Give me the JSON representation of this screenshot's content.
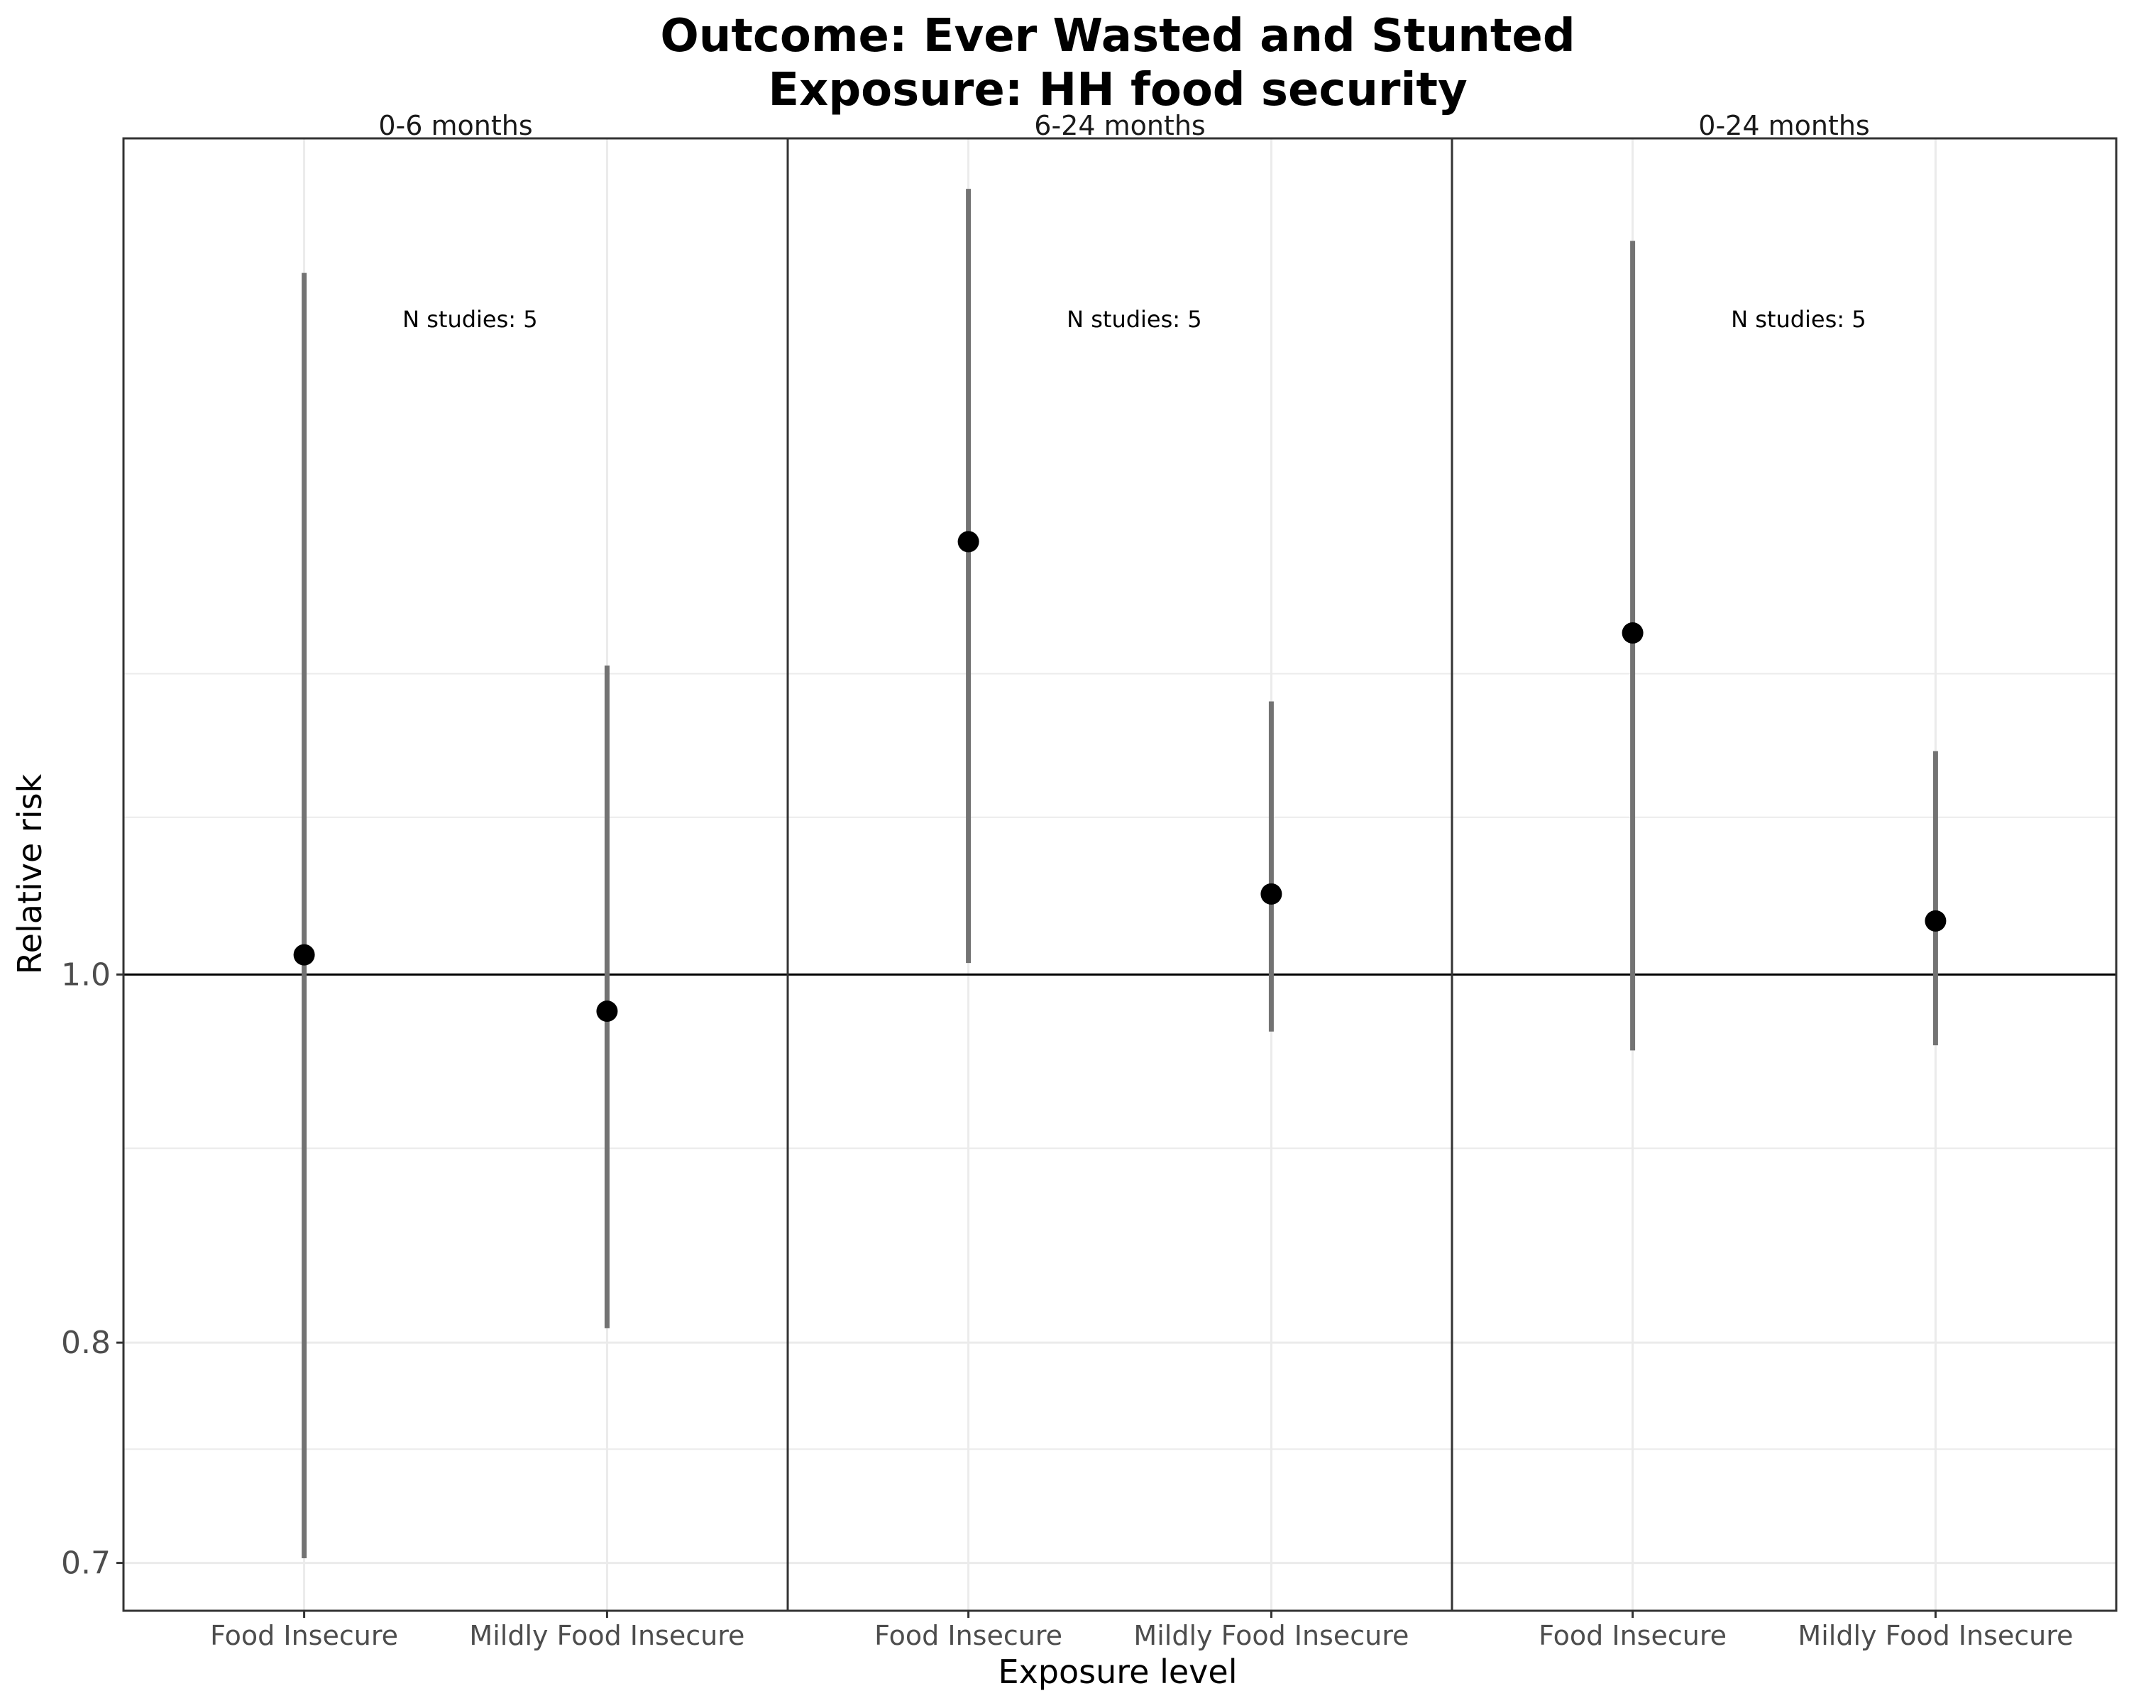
{
  "chart_data": {
    "type": "scatter",
    "title_lines": [
      "Outcome: Ever Wasted and Stunted",
      "Exposure: HH food security"
    ],
    "xlabel": "Exposure level",
    "ylabel": "Relative risk",
    "y_scale": "log",
    "ylim": [
      0.68,
      1.66
    ],
    "y_ticks": [
      0.7,
      0.8,
      1.0
    ],
    "y_tick_labels": [
      "0.7",
      "0.8",
      "1.0"
    ],
    "y_minor_gridlines": [
      0.75,
      0.9,
      1.1,
      1.2
    ],
    "reference_line": 1.0,
    "categories": [
      "Food Insecure",
      "Mildly Food Insecure"
    ],
    "panels": [
      {
        "label": "0-6 months",
        "annotation": "N studies: 5",
        "points": [
          {
            "category": "Food Insecure",
            "estimate": 1.012,
            "lower": 0.702,
            "upper": 1.53
          },
          {
            "category": "Mildly Food Insecure",
            "estimate": 0.978,
            "lower": 0.807,
            "upper": 1.206
          }
        ]
      },
      {
        "label": "6-24 months",
        "annotation": "N studies: 5",
        "points": [
          {
            "category": "Food Insecure",
            "estimate": 1.3,
            "lower": 1.007,
            "upper": 1.61
          },
          {
            "category": "Mildly Food Insecure",
            "estimate": 1.05,
            "lower": 0.966,
            "upper": 1.18
          }
        ]
      },
      {
        "label": "0-24 months",
        "annotation": "N studies: 5",
        "points": [
          {
            "category": "Food Insecure",
            "estimate": 1.23,
            "lower": 0.955,
            "upper": 1.56
          },
          {
            "category": "Mildly Food Insecure",
            "estimate": 1.033,
            "lower": 0.958,
            "upper": 1.145
          }
        ]
      }
    ],
    "grid": true,
    "colors": {
      "point": "#000000",
      "errorbar": "#737373",
      "frame": "#333333",
      "grid": "#ebebeb",
      "refline": "#000000"
    }
  }
}
